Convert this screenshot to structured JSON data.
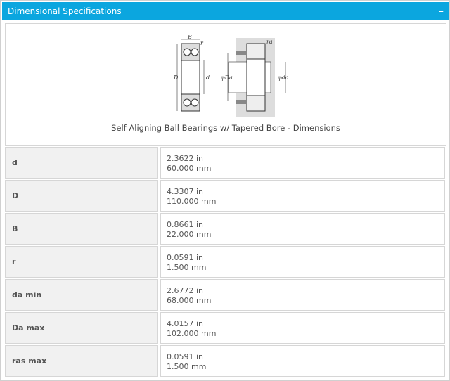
{
  "header": {
    "title": "Dimensional Specifications",
    "collapse_icon": "minus-icon"
  },
  "diagram": {
    "caption": "Self Aligning Ball Bearings w/ Tapered Bore - Dimensions",
    "labels": {
      "B": "B",
      "r": "r",
      "D": "D",
      "d": "d",
      "Da": "φDa",
      "da": "φda",
      "ra": "ra"
    }
  },
  "rows": [
    {
      "label": "d",
      "inch": "2.3622 in",
      "mm": "60.000 mm"
    },
    {
      "label": "D",
      "inch": "4.3307 in",
      "mm": "110.000 mm"
    },
    {
      "label": "B",
      "inch": "0.8661 in",
      "mm": "22.000 mm"
    },
    {
      "label": "r",
      "inch": "0.0591 in",
      "mm": "1.500 mm"
    },
    {
      "label": "da min",
      "inch": "2.6772 in",
      "mm": "68.000 mm"
    },
    {
      "label": "Da max",
      "inch": "4.0157 in",
      "mm": "102.000 mm"
    },
    {
      "label": "ras max",
      "inch": "0.0591 in",
      "mm": "1.500 mm"
    }
  ]
}
